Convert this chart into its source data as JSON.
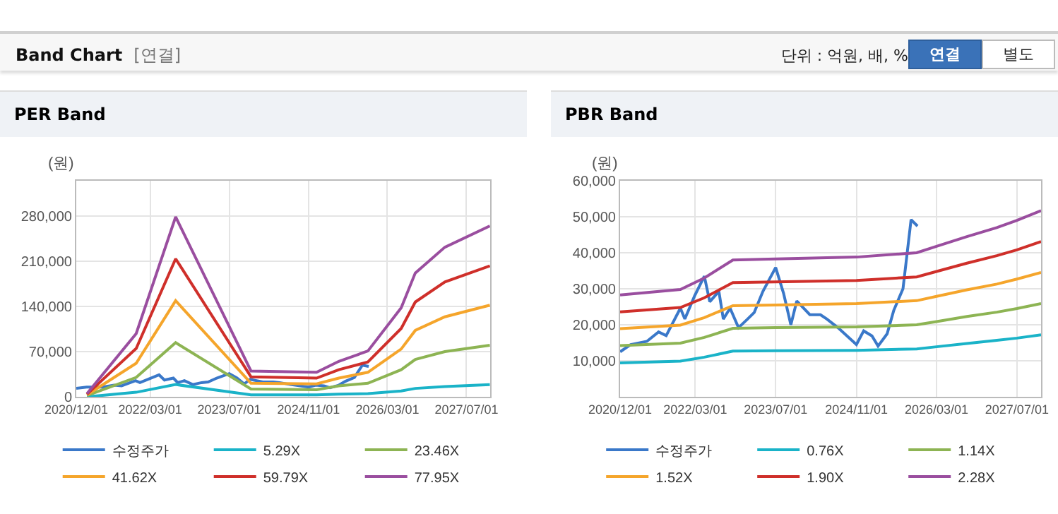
{
  "chart_data": [
    {
      "type": "other",
      "title": "Band Chart",
      "subtitle": "[연결]",
      "annotations": [
        "단위 : 억원, 배, %",
        "연결",
        "별도"
      ]
    },
    {
      "type": "line",
      "title": "PER Band",
      "ylabel": "(원)",
      "grid": true,
      "legend": "bottom",
      "marker": "none",
      "line_style": "solid",
      "xlim": [
        "2020-12-01",
        "2027-11-24"
      ],
      "xticks": [
        {
          "value": "2020-12-01",
          "label": "2020/12/01"
        },
        {
          "value": "2022-03-01",
          "label": "2022/03/01"
        },
        {
          "value": "2023-07-01",
          "label": "2023/07/01"
        },
        {
          "value": "2024-11-01",
          "label": "2024/11/01"
        },
        {
          "value": "2026-03-01",
          "label": "2026/03/01"
        },
        {
          "value": "2027-07-01",
          "label": "2027/07/01"
        }
      ],
      "ylim": [
        0,
        335000
      ],
      "yticks": [
        0,
        {
          "value": 70000,
          "label": "70,000"
        },
        {
          "value": 140000,
          "label": "140,000"
        },
        {
          "value": 210000,
          "label": "210,000"
        },
        {
          "value": 280000,
          "label": "280,000"
        }
      ],
      "series": [
        {
          "name": "수정주가",
          "color": "#3a78c9",
          "x": [
            "2020-12-01",
            "2021-02-03",
            "2021-05-12",
            "2021-07-22",
            "2021-09-06",
            "2021-12-01",
            "2021-12-28",
            "2022-02-25",
            "2022-04-25",
            "2022-05-28",
            "2022-07-22",
            "2022-08-18",
            "2022-09-28",
            "2022-11-18",
            "2023-01-12",
            "2023-02-21",
            "2023-04-15",
            "2023-07-01",
            "2023-08-18",
            "2023-10-01",
            "2023-11-06",
            "2024-01-24",
            "2024-03-28",
            "2024-05-06",
            "2024-07-12",
            "2024-11-01",
            "2024-12-15",
            "2025-02-03",
            "2025-03-12",
            "2025-05-06",
            "2025-06-15",
            "2025-08-10",
            "2025-09-28",
            "2025-11-06"
          ],
          "values": [
            13000,
            15000,
            15000,
            18000,
            17000,
            25000,
            22000,
            28000,
            34000,
            26000,
            29000,
            22000,
            25000,
            19000,
            22000,
            23000,
            29000,
            36000,
            29000,
            20000,
            27000,
            23000,
            23000,
            22000,
            19000,
            15000,
            18000,
            17000,
            14000,
            18000,
            24000,
            30000,
            49000,
            47000
          ]
        },
        {
          "name": "5.29X",
          "color": "#1ab3c8",
          "x": [
            "2021-02-05",
            "2021-12-05",
            "2022-08-05",
            "2023-11-12",
            "2024-12-20",
            "2025-05-06",
            "2025-11-01",
            "2026-05-25",
            "2026-08-20",
            "2027-02-18",
            "2027-11-22"
          ],
          "values": [
            0,
            7000,
            19000,
            3000,
            3000,
            4000,
            5000,
            9000,
            13000,
            16000,
            19000
          ]
        },
        {
          "name": "23.46X",
          "color": "#8db453",
          "x": [
            "2021-02-05",
            "2021-12-05",
            "2022-08-05",
            "2023-11-12",
            "2024-12-20",
            "2025-05-06",
            "2025-11-01",
            "2026-05-25",
            "2026-08-20",
            "2027-02-18",
            "2027-11-22"
          ],
          "values": [
            2000,
            30000,
            84000,
            12000,
            11000,
            17000,
            21000,
            42000,
            58000,
            70000,
            80000
          ]
        },
        {
          "name": "41.62X",
          "color": "#f5a52b",
          "x": [
            "2021-02-05",
            "2021-12-05",
            "2022-08-05",
            "2023-11-12",
            "2024-12-20",
            "2025-05-06",
            "2025-11-01",
            "2026-05-25",
            "2026-08-20",
            "2027-02-18",
            "2027-11-22"
          ],
          "values": [
            3000,
            52000,
            149000,
            21000,
            20000,
            29000,
            38000,
            74000,
            103000,
            124000,
            142000
          ]
        },
        {
          "name": "59.79X",
          "color": "#cf2f2a",
          "x": [
            "2021-02-05",
            "2021-12-05",
            "2022-08-05",
            "2023-11-12",
            "2024-12-20",
            "2025-05-06",
            "2025-11-01",
            "2026-05-25",
            "2026-08-20",
            "2027-02-18",
            "2027-11-22"
          ],
          "values": [
            4000,
            75000,
            214000,
            31000,
            29000,
            42000,
            54000,
            106000,
            147000,
            178000,
            203000
          ]
        },
        {
          "name": "77.95X",
          "color": "#9a4e9f",
          "x": [
            "2021-02-05",
            "2021-12-05",
            "2022-08-05",
            "2023-11-12",
            "2024-12-20",
            "2025-05-06",
            "2025-11-01",
            "2026-05-25",
            "2026-08-20",
            "2027-02-18",
            "2027-11-22"
          ],
          "values": [
            5000,
            98000,
            279000,
            40000,
            38000,
            55000,
            71000,
            138000,
            192000,
            232000,
            265000
          ]
        }
      ]
    },
    {
      "type": "line",
      "title": "PBR Band",
      "ylabel": "(원)",
      "grid": true,
      "legend": "bottom",
      "marker": "none",
      "line_style": "solid",
      "xlim": [
        "2020-12-01",
        "2027-11-24"
      ],
      "xticks": [
        {
          "value": "2020-12-01",
          "label": "2020/12/01"
        },
        {
          "value": "2022-03-01",
          "label": "2022/03/01"
        },
        {
          "value": "2023-07-01",
          "label": "2023/07/01"
        },
        {
          "value": "2024-11-01",
          "label": "2024/11/01"
        },
        {
          "value": "2026-03-01",
          "label": "2026/03/01"
        },
        {
          "value": "2027-07-01",
          "label": "2027/07/01"
        }
      ],
      "ylim": [
        0,
        60000
      ],
      "yticks": [
        {
          "value": 10000,
          "label": "10,000"
        },
        {
          "value": 20000,
          "label": "20,000"
        },
        {
          "value": 30000,
          "label": "30,000"
        },
        {
          "value": 40000,
          "label": "40,000"
        },
        {
          "value": 50000,
          "label": "50,000"
        },
        {
          "value": 60000,
          "label": "60,000"
        }
      ],
      "series": [
        {
          "name": "수정주가",
          "color": "#3a78c9",
          "x": [
            "2020-12-01",
            "2021-02-03",
            "2021-05-12",
            "2021-07-22",
            "2021-09-06",
            "2021-12-01",
            "2021-12-28",
            "2022-02-25",
            "2022-04-25",
            "2022-05-28",
            "2022-07-22",
            "2022-08-18",
            "2022-09-28",
            "2022-11-18",
            "2023-01-12",
            "2023-02-21",
            "2023-04-15",
            "2023-07-01",
            "2023-08-18",
            "2023-10-01",
            "2023-11-06",
            "2024-01-24",
            "2024-03-28",
            "2024-05-06",
            "2024-07-12",
            "2024-11-01",
            "2024-12-15",
            "2025-02-03",
            "2025-03-12",
            "2025-05-06",
            "2025-06-15",
            "2025-08-10",
            "2025-09-28",
            "2025-11-06"
          ],
          "values": [
            12500,
            14500,
            15400,
            18000,
            17000,
            24600,
            21600,
            28000,
            33500,
            26400,
            29300,
            21600,
            24600,
            19200,
            21600,
            23400,
            29300,
            35900,
            28700,
            20000,
            26600,
            22800,
            22800,
            21600,
            19200,
            14500,
            18300,
            16900,
            14100,
            17500,
            24000,
            30000,
            49200,
            47400
          ]
        },
        {
          "name": "0.76X",
          "color": "#1ab3c8",
          "x": [
            "2020-12-01",
            "2021-12-01",
            "2022-04-25",
            "2022-10-15",
            "2023-07-01",
            "2024-11-01",
            "2025-11-01",
            "2026-03-01",
            "2026-09-01",
            "2027-03-01",
            "2027-07-01",
            "2027-11-24"
          ],
          "values": [
            9400,
            9900,
            11000,
            12700,
            12800,
            12900,
            13300,
            13900,
            14800,
            15700,
            16300,
            17200
          ]
        },
        {
          "name": "1.14X",
          "color": "#8db453",
          "x": [
            "2020-12-01",
            "2021-12-01",
            "2022-04-25",
            "2022-10-15",
            "2023-07-01",
            "2024-11-01",
            "2025-11-01",
            "2026-03-01",
            "2026-09-01",
            "2027-03-01",
            "2027-07-01",
            "2027-11-24"
          ],
          "values": [
            14200,
            14900,
            16500,
            19000,
            19200,
            19400,
            20000,
            20900,
            22300,
            23500,
            24500,
            25900
          ]
        },
        {
          "name": "1.52X",
          "color": "#f5a52b",
          "x": [
            "2020-12-01",
            "2021-12-01",
            "2022-04-25",
            "2022-10-15",
            "2023-07-01",
            "2024-11-01",
            "2025-11-01",
            "2026-03-01",
            "2026-09-01",
            "2027-03-01",
            "2027-07-01",
            "2027-11-24"
          ],
          "values": [
            18900,
            19900,
            22000,
            25300,
            25500,
            25900,
            26700,
            27900,
            29700,
            31300,
            32700,
            34500
          ]
        },
        {
          "name": "1.90X",
          "color": "#cf2f2a",
          "x": [
            "2020-12-01",
            "2021-12-01",
            "2022-04-25",
            "2022-10-15",
            "2023-07-01",
            "2024-11-01",
            "2025-11-01",
            "2026-03-01",
            "2026-09-01",
            "2027-03-01",
            "2027-07-01",
            "2027-11-24"
          ],
          "values": [
            23600,
            24800,
            27500,
            31700,
            31900,
            32300,
            33300,
            34800,
            37100,
            39200,
            40800,
            43100
          ]
        },
        {
          "name": "2.28X",
          "color": "#9a4e9f",
          "x": [
            "2020-12-01",
            "2021-12-01",
            "2022-04-25",
            "2022-10-15",
            "2023-07-01",
            "2024-11-01",
            "2025-11-01",
            "2026-03-01",
            "2026-09-01",
            "2027-03-01",
            "2027-07-01",
            "2027-11-24"
          ],
          "values": [
            28300,
            29800,
            33000,
            38000,
            38300,
            38800,
            40000,
            41800,
            44500,
            47000,
            49000,
            51700
          ]
        }
      ]
    }
  ]
}
